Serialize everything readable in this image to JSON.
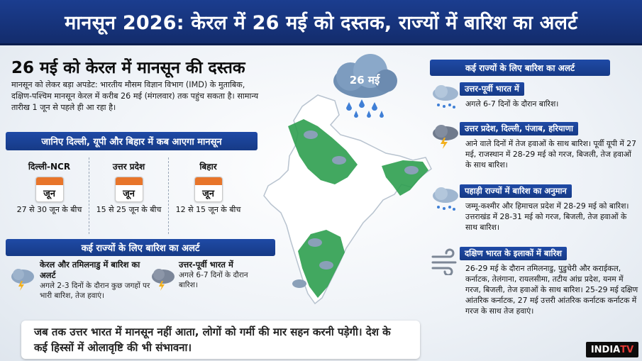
{
  "banner": {
    "title": "मानसून 2026: केरल में 26 मई को दस्तक, राज्यों में बारिश का अलर्ट"
  },
  "headline": "26 मई को केरल में मानसून की दस्तक",
  "intro": "मानसून को लेकर बड़ा अपडेट: भारतीय मौसम विज्ञान विभाग (IMD) के मुताबिक, दक्षिण-पश्चिम मानसून केरल में करीब 26 मई (मंगलवार) तक पहुंच सकता है। सामान्य तारीख 1 जून से पहले ही आ रहा है।",
  "cloud_label": "26 मई",
  "arrival": {
    "title": "जानिए दिल्ली, यूपी और बिहार में कब आएगा मानसून",
    "cities": [
      {
        "name": "दिल्ली-NCR",
        "month": "जून",
        "range": "27 से 30 जून के बीच"
      },
      {
        "name": "उत्तर प्रदेश",
        "month": "जून",
        "range": "15 से 25 जून के बीच"
      },
      {
        "name": "बिहार",
        "month": "जून",
        "range": "12 से 15 जून के बीच"
      }
    ]
  },
  "left_alert": {
    "title": "कई राज्यों के लिए बारिश का अलर्ट",
    "items": [
      {
        "title": "केरल और तमिलनाडु में बारिश का अलर्ट",
        "text": "अगले 2-3 दिनों के दौरान कुछ जगहों पर भारी बारिश, तेज हवाएं।"
      },
      {
        "title": "उत्तर-पूर्वी भारत में",
        "text": "अगले 6-7 दिनों के दौरान बारिश।"
      }
    ]
  },
  "bottom_note": "जब तक उत्तर भारत में मानसून नहीं आता, लोगों को गर्मी की मार सहन करनी पड़ेगी। देश के कई हिस्सों में ओलावृष्टि की भी संभावना।",
  "right_alert": {
    "title": "कई राज्यों के लिए बारिश का अलर्ट",
    "blocks": [
      {
        "head": "उत्तर-पूर्वी भारत में",
        "text": "अगले 6-7 दिनों के दौरान बारिश।",
        "icon": "rain-cloud-icon"
      },
      {
        "head": "उत्तर प्रदेश, दिल्ली, पंजाब, हरियाणा",
        "text": "आने वाले दिनों में तेज हवाओं के साथ बारिश। पूर्वी यूपी में 27 मई, राजस्थान में 28-29 मई को गरज, बिजली, तेज हवाओं के साथ बारिश।",
        "icon": "thunderstorm-icon"
      },
      {
        "head": "पहाड़ी राज्यों में बारिश का अनुमान",
        "text": "जम्मू-कश्मीर और हिमाचल प्रदेश में 28-29 मई को बारिश। उत्तराखंड में 28-31 मई को गरज, बिजली, तेज हवाओं के साथ बारिश।",
        "icon": "rain-cloud-icon"
      },
      {
        "head": "दक्षिण भारत के इलाकों में बारिश",
        "text": "26-29 मई के दौरान तमिलनाडु, पुडुचेरी और कराईकल, कर्नाटक, तेलंगाना, रायलसीमा, तटीय आंध्र प्रदेश, यनम में गरज, बिजली, तेज हवाओं के साथ बारिश। 25-29 मई दक्षिण आंतरिक कर्नाटक, 27 मई उत्तरी आंतरिक कर्नाटक कर्नाटक में गरज के साथ तेज हवाएं।",
        "icon": "wind-icon"
      }
    ]
  },
  "logo": {
    "text_a": "INDIA",
    "text_b": "TV"
  },
  "colors": {
    "banner": "#163a86",
    "highlight_green": "#2e9e4f",
    "map_land": "#ffffff",
    "calendar_accent": "#e8752a"
  }
}
